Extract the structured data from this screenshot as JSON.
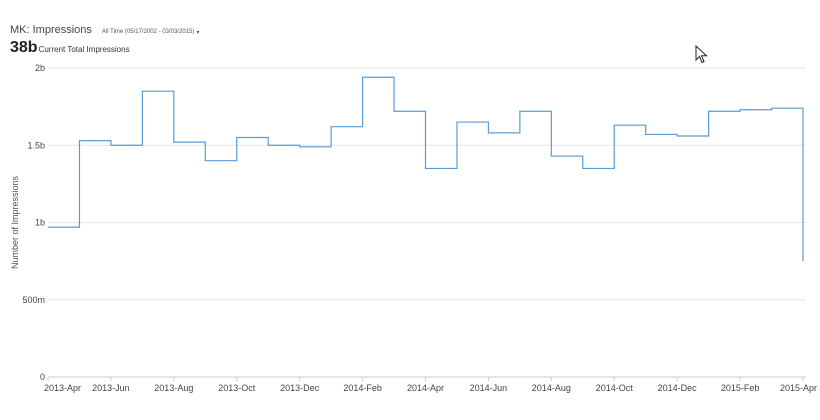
{
  "header": {
    "title": "MK: Impressions",
    "range_label": "All Time (05/17/2002 - 03/03/2015)",
    "range_caret": "▾"
  },
  "summary": {
    "total_value": "38b",
    "total_label": "Current Total Impressions"
  },
  "colors": {
    "line": "#5b9bd5",
    "grid": "#e6e6e6",
    "axis": "#cccccc"
  },
  "chart_data": {
    "type": "line",
    "step": true,
    "ylabel": "Number of Impressions",
    "ylim": [
      0,
      2000000000
    ],
    "y_ticks": [
      {
        "value": 0,
        "label": "0"
      },
      {
        "value": 500000000,
        "label": "500m"
      },
      {
        "value": 1000000000,
        "label": "1b"
      },
      {
        "value": 1500000000,
        "label": "1.5b"
      },
      {
        "value": 2000000000,
        "label": "2b"
      }
    ],
    "x_ticks": [
      "2013-Apr",
      "2013-Jun",
      "2013-Aug",
      "2013-Oct",
      "2013-Dec",
      "2014-Feb",
      "2014-Apr",
      "2014-Jun",
      "2014-Aug",
      "2014-Oct",
      "2014-Dec",
      "2015-Feb",
      "2015-Apr"
    ],
    "x": [
      "2013-Apr",
      "2013-May",
      "2013-Jun",
      "2013-Jul",
      "2013-Aug",
      "2013-Sep",
      "2013-Oct",
      "2013-Nov",
      "2013-Dec",
      "2014-Jan",
      "2014-Feb",
      "2014-Mar",
      "2014-Apr",
      "2014-May",
      "2014-Jun",
      "2014-Jul",
      "2014-Aug",
      "2014-Sep",
      "2014-Oct",
      "2014-Nov",
      "2014-Dec",
      "2015-Jan",
      "2015-Feb",
      "2015-Mar",
      "2015-Apr"
    ],
    "series": [
      {
        "values": [
          970000000,
          1530000000,
          1500000000,
          1850000000,
          1520000000,
          1400000000,
          1550000000,
          1500000000,
          1490000000,
          1620000000,
          1940000000,
          1720000000,
          1350000000,
          1650000000,
          1580000000,
          1720000000,
          1430000000,
          1350000000,
          1630000000,
          1570000000,
          1560000000,
          1720000000,
          1730000000,
          1740000000,
          750000000
        ]
      }
    ]
  }
}
